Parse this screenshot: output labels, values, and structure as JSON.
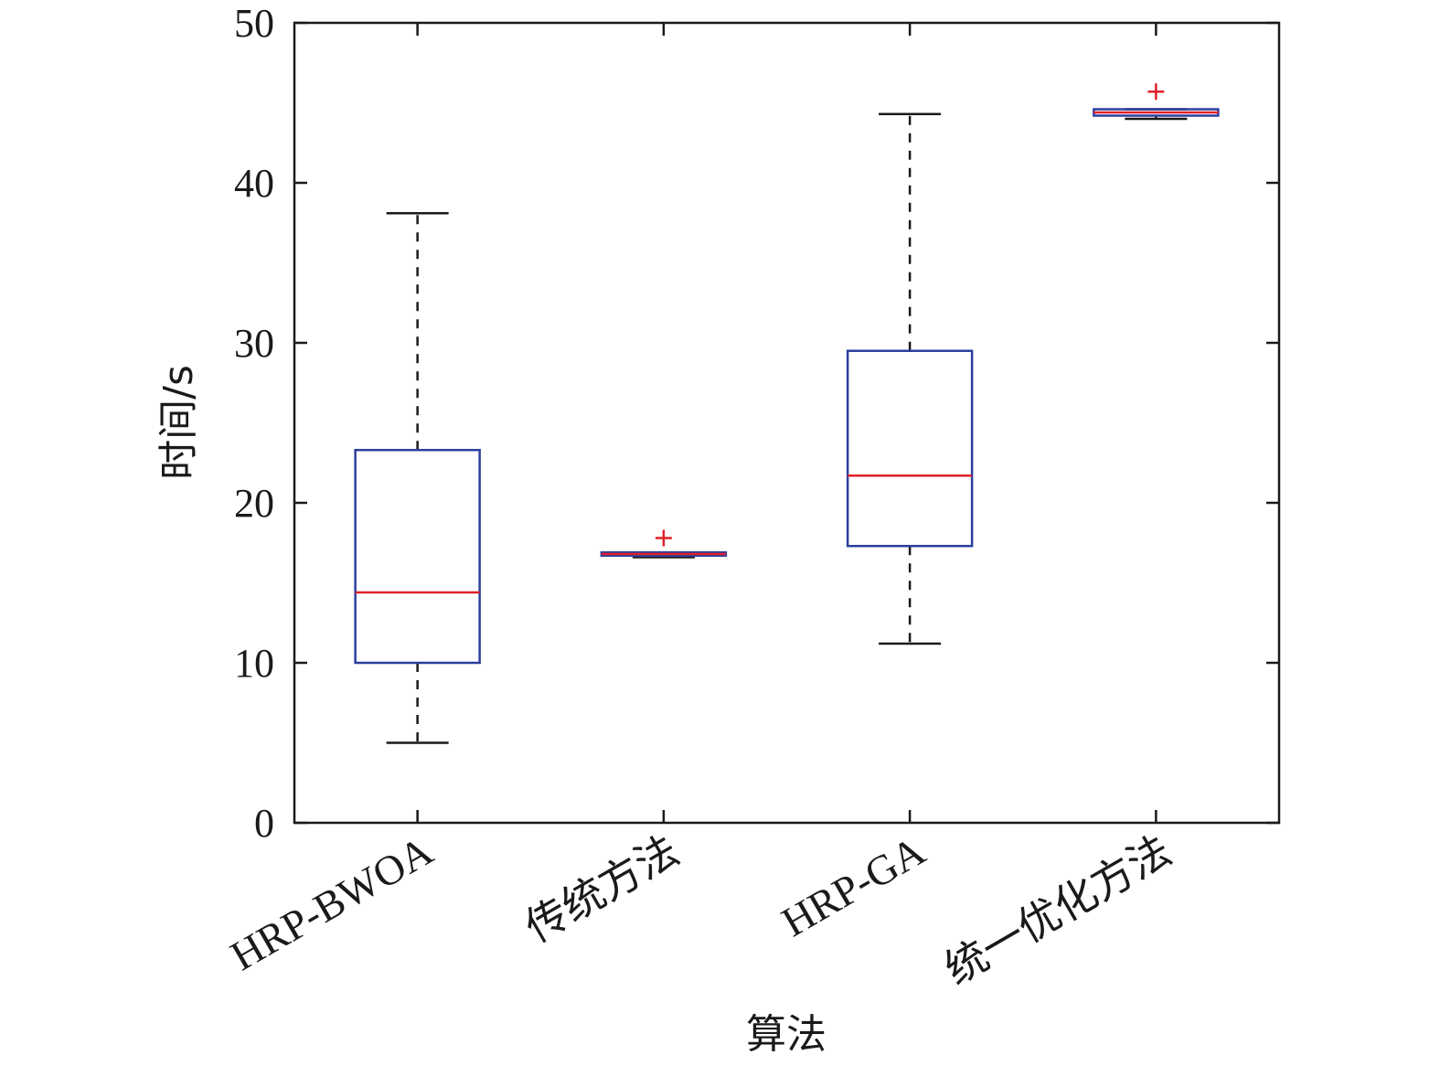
{
  "chart_data": {
    "type": "box",
    "xlabel": "算法",
    "ylabel": "时间/s",
    "ylim": [
      0,
      50
    ],
    "yticks": [
      0,
      10,
      20,
      30,
      40,
      50
    ],
    "grid": false,
    "categories": [
      "HRP-BWOA",
      "传统方法",
      "HRP-GA",
      "统一优化方法"
    ],
    "boxes": [
      {
        "category": "HRP-BWOA",
        "whisker_low": 5.0,
        "q1": 10.0,
        "median": 14.4,
        "q3": 23.3,
        "whisker_high": 38.1,
        "outliers": []
      },
      {
        "category": "传统方法",
        "whisker_low": 16.6,
        "q1": 16.7,
        "median": 16.8,
        "q3": 16.9,
        "whisker_high": 16.9,
        "outliers": [
          17.8
        ]
      },
      {
        "category": "HRP-GA",
        "whisker_low": 11.2,
        "q1": 17.3,
        "median": 21.7,
        "q3": 29.5,
        "whisker_high": 44.3,
        "outliers": []
      },
      {
        "category": "统一优化方法",
        "whisker_low": 44.0,
        "q1": 44.2,
        "median": 44.4,
        "q3": 44.6,
        "whisker_high": 44.6,
        "outliers": [
          45.7
        ]
      }
    ],
    "colors": {
      "box": "#2b3f9e",
      "median": "#e0202a",
      "whisker": "#1a1a1a",
      "outlier": "#e0202a",
      "axis": "#1a1a1a"
    }
  }
}
